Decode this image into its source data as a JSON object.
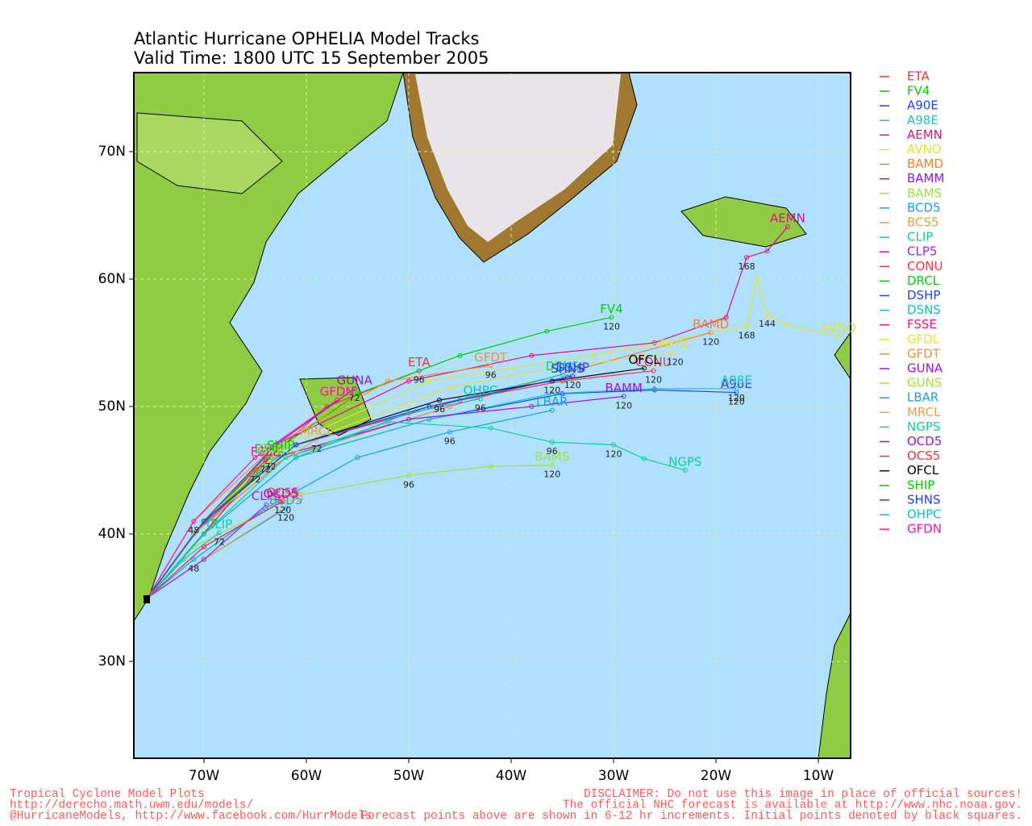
{
  "map": {
    "title": [
      "Atlantic Hurricane OPHELIA Model Tracks",
      "Valid Time: 1800 UTC 15 September 2005"
    ],
    "xlim": [
      -76.85,
      -6.85
    ],
    "ylim": [
      22.4,
      76.2
    ],
    "xticks": [
      {
        "value": -70,
        "label": "70W"
      },
      {
        "value": -60,
        "label": "60W"
      },
      {
        "value": -50,
        "label": "50W"
      },
      {
        "value": -40,
        "label": "40W"
      },
      {
        "value": -30,
        "label": "30W"
      },
      {
        "value": -20,
        "label": "20W"
      },
      {
        "value": -10,
        "label": "10W"
      }
    ],
    "yticks": [
      {
        "value": 30,
        "label": "30N"
      },
      {
        "value": 40,
        "label": "40N"
      },
      {
        "value": 50,
        "label": "50N"
      },
      {
        "value": 60,
        "label": "60N"
      },
      {
        "value": 70,
        "label": "70N"
      }
    ],
    "tracks": [
      {
        "name": "ETA",
        "color": "#ff3030",
        "lat": [
          35,
          40,
          45,
          50,
          52.8
        ],
        "lon": [
          -75.5,
          -71,
          -65,
          -58,
          -49
        ],
        "hours": [
          null,
          null,
          72,
          null,
          96
        ]
      },
      {
        "name": "FV4",
        "color": "#00cc00",
        "lat": [
          35,
          40,
          46,
          51,
          54,
          55.9,
          57
        ],
        "lon": [
          -75.5,
          -71,
          -64,
          -55,
          -45,
          -36.5,
          -30.2
        ],
        "hours": [
          null,
          null,
          null,
          null,
          null,
          null,
          120
        ]
      },
      {
        "name": "A90E",
        "color": "#2040ff",
        "lat": [
          35,
          40,
          46,
          49,
          51,
          51.3,
          51.1
        ],
        "lon": [
          -75.5,
          -70,
          -61,
          -48,
          -35,
          -26,
          -18
        ],
        "hours": [
          null,
          null,
          null,
          null,
          null,
          null,
          120
        ]
      },
      {
        "name": "A98E",
        "color": "#20c0c0",
        "lat": [
          35,
          40,
          46,
          49,
          51,
          51.4,
          51.4
        ],
        "lon": [
          -75.5,
          -70,
          -61,
          -48,
          -36,
          -26,
          -18
        ],
        "hours": [
          null,
          null,
          null,
          null,
          null,
          null,
          120
        ]
      },
      {
        "name": "AEMN",
        "color": "#e0107a",
        "lat": [
          35,
          41,
          47,
          52,
          54,
          55,
          57,
          61.7,
          62.2,
          64.1
        ],
        "lon": [
          -75.5,
          -70,
          -63,
          -50,
          -38,
          -26,
          -19,
          -17,
          -15,
          -13
        ],
        "hours": [
          null,
          null,
          null,
          null,
          null,
          null,
          null,
          168,
          null,
          null
        ]
      },
      {
        "name": "AVNO",
        "color": "#e8e030",
        "lat": [
          35,
          41,
          47,
          52,
          54,
          56.3,
          60,
          57.2,
          56.4,
          55.5
        ],
        "lon": [
          -75.5,
          -70,
          -62,
          -48,
          -32,
          -17,
          -16,
          -15,
          -13,
          -8
        ],
        "hours": [
          null,
          null,
          null,
          null,
          null,
          168,
          null,
          144,
          null,
          null
        ]
      },
      {
        "name": "BAMD",
        "color": "#f08030",
        "lat": [
          35,
          40,
          46,
          50,
          53,
          55.8
        ],
        "lon": [
          -75.5,
          -71,
          -62,
          -46,
          -33,
          -20.5
        ],
        "hours": [
          null,
          null,
          null,
          null,
          null,
          120
        ]
      },
      {
        "name": "BAMM",
        "color": "#a010e0",
        "lat": [
          35,
          40,
          46,
          49,
          50,
          50.8
        ],
        "lon": [
          -75.5,
          -71,
          -63,
          -50,
          -38,
          -29
        ],
        "hours": [
          null,
          null,
          null,
          null,
          null,
          120
        ]
      },
      {
        "name": "BAMS",
        "color": "#a0e040",
        "lat": [
          35,
          39,
          43,
          44.6,
          45.3,
          45.4
        ],
        "lon": [
          -75.5,
          -71,
          -61,
          -50,
          -42,
          -36
        ],
        "hours": [
          null,
          null,
          null,
          96,
          null,
          120
        ]
      },
      {
        "name": "BCD5",
        "color": "#10a0f0",
        "lat": [
          35,
          38,
          42
        ],
        "lon": [
          -75.5,
          -70,
          -62
        ],
        "hours": [
          null,
          null,
          120
        ]
      },
      {
        "name": "BCS5",
        "color": "#e8a040",
        "lat": [
          35,
          38,
          42.2
        ],
        "lon": [
          -75.5,
          -70,
          -61.8
        ],
        "hours": [
          null,
          null,
          null
        ]
      },
      {
        "name": "CLIP",
        "color": "#10d090",
        "lat": [
          35,
          38,
          40.1
        ],
        "lon": [
          -75.5,
          -72,
          -68.5
        ],
        "hours": [
          null,
          null,
          72
        ]
      },
      {
        "name": "CLP5",
        "color": "#a020f0",
        "lat": [
          35,
          38,
          42.3
        ],
        "lon": [
          -75.5,
          -70,
          -63.9
        ],
        "hours": [
          null,
          null,
          null
        ]
      },
      {
        "name": "CONU",
        "color": "#ff3040",
        "lat": [
          35,
          41,
          47,
          50.5,
          52,
          52.8
        ],
        "lon": [
          -75.5,
          -70,
          -61,
          -45,
          -35,
          -26.1
        ],
        "hours": [
          null,
          null,
          null,
          null,
          null,
          120
        ]
      },
      {
        "name": "DRCL",
        "color": "#10c020",
        "lat": [
          35,
          41,
          46
        ],
        "lon": [
          -75.5,
          -69,
          -63.5
        ],
        "hours": [
          null,
          null,
          72
        ]
      },
      {
        "name": "DSHP",
        "color": "#2040f0",
        "lat": [
          35,
          41,
          47,
          50,
          52.4
        ],
        "lon": [
          -75.5,
          -70,
          -61,
          -48,
          -34
        ],
        "hours": [
          null,
          null,
          null,
          null,
          120
        ]
      },
      {
        "name": "DSNS",
        "color": "#10c0c0",
        "lat": [
          35,
          41,
          47,
          50,
          52.5
        ],
        "lon": [
          -75.5,
          -70,
          -61,
          -48,
          -35
        ],
        "hours": [
          null,
          null,
          null,
          null,
          null
        ]
      },
      {
        "name": "FSSE",
        "color": "#ff1070",
        "lat": [
          35,
          40,
          45.8
        ],
        "lon": [
          -75.5,
          -70,
          -64
        ],
        "hours": [
          null,
          null,
          72
        ]
      },
      {
        "name": "GFDL",
        "color": "#e8e030",
        "lat": [
          35,
          41,
          47,
          51.5,
          53,
          54.2
        ],
        "lon": [
          -75.5,
          -70,
          -61,
          -46,
          -36,
          -24
        ],
        "hours": [
          null,
          null,
          null,
          null,
          null,
          120
        ]
      },
      {
        "name": "GFDT",
        "color": "#f09030",
        "lat": [
          35,
          41,
          47,
          52,
          53.2
        ],
        "lon": [
          -75.5,
          -71,
          -63,
          -52,
          -42
        ],
        "hours": [
          null,
          null,
          null,
          null,
          96
        ]
      },
      {
        "name": "GUNA",
        "color": "#a010d0",
        "lat": [
          35,
          41,
          47,
          51.4
        ],
        "lon": [
          -75.5,
          -70,
          -63,
          -55.3
        ],
        "hours": [
          null,
          null,
          null,
          72
        ]
      },
      {
        "name": "GUNS",
        "color": "#a0e040",
        "lat": [
          35,
          41,
          46
        ],
        "lon": [
          -75.5,
          -70,
          -63
        ],
        "hours": [
          null,
          null,
          null
        ]
      },
      {
        "name": "LBAR",
        "color": "#10a0f0",
        "lat": [
          35,
          38,
          42,
          46,
          48,
          49.7
        ],
        "lon": [
          -75.5,
          -71,
          -64,
          -55,
          -46,
          -36
        ],
        "hours": [
          null,
          48,
          null,
          null,
          96,
          null
        ]
      },
      {
        "name": "MRCL",
        "color": "#e8a040",
        "lat": [
          35,
          40,
          45,
          47.4
        ],
        "lon": [
          -75.5,
          -71,
          -64,
          -59
        ],
        "hours": [
          null,
          null,
          null,
          72
        ]
      },
      {
        "name": "NGPS",
        "color": "#10d090",
        "lat": [
          35,
          40,
          46,
          48.8,
          48.3,
          47.2,
          47,
          45.9,
          45
        ],
        "lon": [
          -75.5,
          -70,
          -62,
          -52,
          -42,
          -36,
          -30,
          -27,
          -23
        ],
        "hours": [
          null,
          null,
          null,
          null,
          null,
          96,
          120,
          null,
          null
        ]
      },
      {
        "name": "OCD5",
        "color": "#a010e0",
        "lat": [
          35,
          39,
          42.5
        ],
        "lon": [
          -75.5,
          -70,
          -62.5
        ],
        "hours": [
          null,
          null,
          null
        ]
      },
      {
        "name": "OCS5",
        "color": "#ff3030",
        "lat": [
          35,
          39,
          42.6
        ],
        "lon": [
          -75.5,
          -70,
          -62.3
        ],
        "hours": [
          null,
          null,
          120
        ]
      },
      {
        "name": "OFCL",
        "color": "#000000",
        "lat": [
          35,
          41,
          47,
          50.5,
          52,
          53
        ],
        "lon": [
          -75.5,
          -70,
          -61,
          -47,
          -36,
          -27
        ],
        "hours": [
          null,
          null,
          null,
          96,
          120,
          null
        ]
      },
      {
        "name": "SHIP",
        "color": "#00cc00",
        "lat": [
          35,
          41,
          46.3
        ],
        "lon": [
          -75.5,
          -70,
          -62.5
        ],
        "hours": [
          null,
          null,
          null
        ]
      },
      {
        "name": "SHNS",
        "color": "#2040f0",
        "lat": [
          35,
          41,
          47,
          50,
          52.3
        ],
        "lon": [
          -75.5,
          -70,
          -61,
          -48,
          -34.5
        ],
        "hours": [
          null,
          null,
          null,
          null,
          null
        ]
      },
      {
        "name": "OHPC",
        "color": "#10c0c0",
        "lat": [
          35,
          40,
          46,
          49.5,
          50.6
        ],
        "lon": [
          -75.5,
          -70,
          -61,
          -50,
          -43
        ],
        "hours": [
          null,
          null,
          null,
          null,
          96
        ]
      },
      {
        "name": "GFDN",
        "color": "#ff10a0",
        "lat": [
          35,
          41,
          46,
          50.5
        ],
        "lon": [
          -75.5,
          -71,
          -65,
          -57
        ],
        "hours": [
          null,
          48,
          null,
          null
        ]
      }
    ],
    "footer_left": [
      "Tropical Cyclone Model Plots",
      "http://derecho.math.uwm.edu/models/",
      "@HurricaneModels, http://www.facebook.com/HurrModels"
    ],
    "footer_right": [
      "DISCLAIMER: Do not use this image in place of official sources!",
      "The official NHC forecast is available at http://www.nhc.noaa.gov.",
      "Forecast points above are shown in 6-12 hr increments. Initial points denoted by black squares."
    ]
  }
}
